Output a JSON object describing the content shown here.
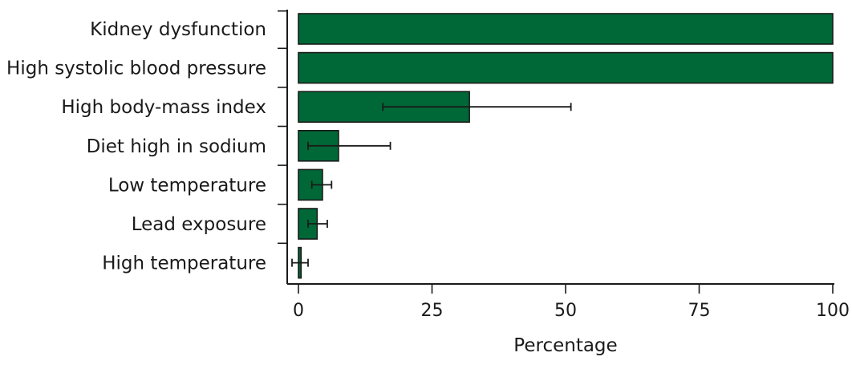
{
  "chart_data": {
    "type": "bar",
    "orientation": "horizontal",
    "categories": [
      "Kidney dysfunction",
      "High systolic blood pressure",
      "High body-mass index",
      "Diet high in sodium",
      "Low temperature",
      "Lead exposure",
      "High temperature"
    ],
    "values": [
      100,
      100,
      32,
      7.5,
      4.5,
      3.5,
      0.5
    ],
    "error_bars": [
      null,
      null,
      [
        15.8,
        51
      ],
      [
        1.8,
        17.2
      ],
      [
        2.5,
        6.2
      ],
      [
        1.8,
        5.4
      ],
      [
        -1.2,
        1.8
      ]
    ],
    "xlabel": "Percentage",
    "ylabel": "",
    "xlim": [
      0,
      100
    ],
    "xticks": [
      "0",
      "25",
      "50",
      "75",
      "100"
    ],
    "xtick_values": [
      0,
      25,
      50,
      75,
      100
    ],
    "grid": false,
    "colors": {
      "bar": "#006837",
      "outline": "#1a1a1a"
    }
  }
}
